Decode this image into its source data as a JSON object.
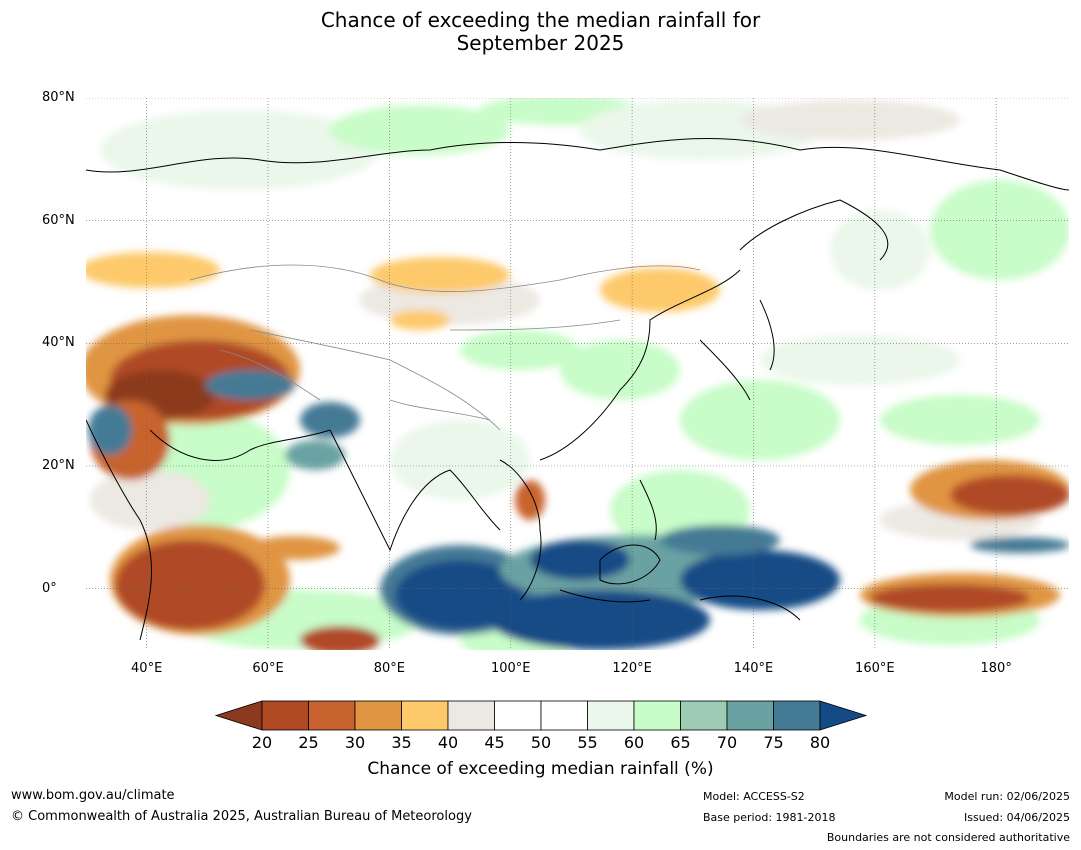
{
  "title_line1": "Chance of exceeding the median rainfall for",
  "title_line2": "September 2025",
  "map": {
    "lat_labels": [
      {
        "text": "80°N",
        "lat": 80
      },
      {
        "text": "60°N",
        "lat": 60
      },
      {
        "text": "40°N",
        "lat": 40
      },
      {
        "text": "20°N",
        "lat": 20
      },
      {
        "text": "0°",
        "lat": 0
      }
    ],
    "lon_labels": [
      {
        "text": "40°E",
        "lon": 40
      },
      {
        "text": "60°E",
        "lon": 60
      },
      {
        "text": "80°E",
        "lon": 80
      },
      {
        "text": "100°E",
        "lon": 100
      },
      {
        "text": "120°E",
        "lon": 120
      },
      {
        "text": "140°E",
        "lon": 140
      },
      {
        "text": "160°E",
        "lon": 160
      },
      {
        "text": "180°",
        "lon": 180
      }
    ],
    "extent": {
      "lon_min": 30,
      "lon_max": 192,
      "lat_min": -10,
      "lat_max": 80
    }
  },
  "colorbar": {
    "ticks": [
      "20",
      "25",
      "30",
      "35",
      "40",
      "45",
      "50",
      "55",
      "60",
      "65",
      "70",
      "75",
      "80"
    ],
    "colors": [
      "#8b3a1f",
      "#b04a25",
      "#c8632f",
      "#e09542",
      "#fdc96a",
      "#ece8e2",
      "#ffffff",
      "#ffffff",
      "#eaf7ea",
      "#c8fcc8",
      "#9dcbb4",
      "#6aa2a3",
      "#457a95",
      "#134b86"
    ],
    "label": "Chance of exceeding median rainfall (%)"
  },
  "footer": {
    "website": "www.bom.gov.au/climate",
    "copyright": "© Commonwealth of Australia 2025, Australian Bureau of Meteorology",
    "model": "Model: ACCESS-S2",
    "base_period": "Base period: 1981-2018",
    "model_run": "Model run: 02/06/2025",
    "issued": "Issued: 04/06/2025",
    "disclaimer": "Boundaries are not considered authoritative"
  }
}
